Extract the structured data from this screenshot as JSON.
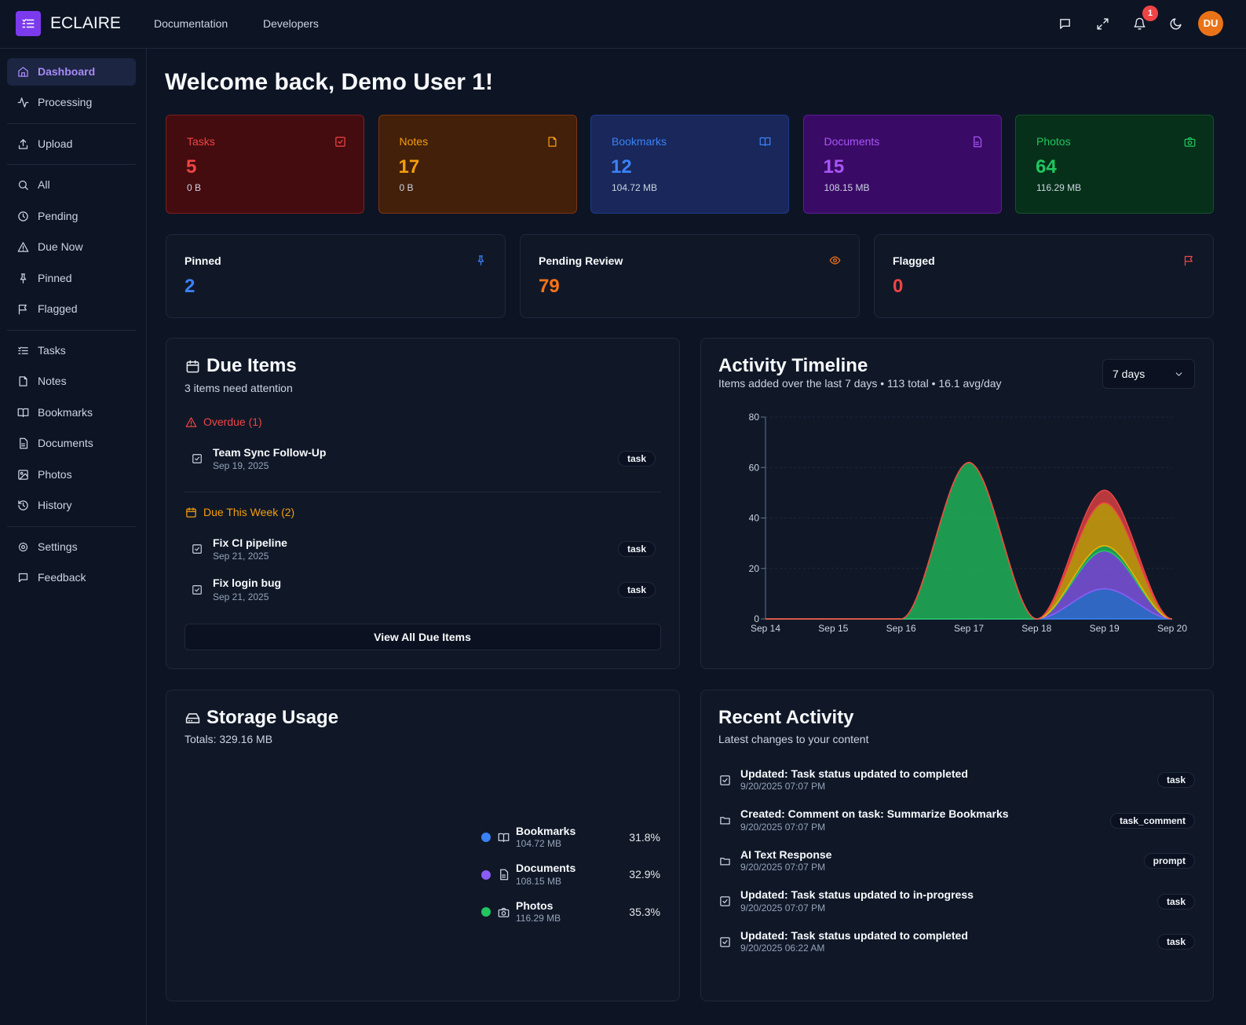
{
  "header": {
    "brand": "ECLAIRE",
    "nav": [
      "Documentation",
      "Developers"
    ],
    "notifications": 1,
    "avatar": "DU"
  },
  "sidebar": {
    "groups": [
      [
        "Dashboard",
        "Processing"
      ],
      [
        "Upload"
      ],
      [
        "All",
        "Pending",
        "Due Now",
        "Pinned",
        "Flagged"
      ],
      [
        "Tasks",
        "Notes",
        "Bookmarks",
        "Documents",
        "Photos",
        "History"
      ],
      [
        "Settings",
        "Feedback"
      ]
    ]
  },
  "page_title": "Welcome back, Demo User 1!",
  "stat_cards": [
    {
      "label": "Tasks",
      "count": 5,
      "size": "0 B",
      "color": "#ef4444",
      "bg": "#450c10",
      "border": "#7f1d1d"
    },
    {
      "label": "Notes",
      "count": 17,
      "size": "0 B",
      "color": "#f59e0b",
      "bg": "#43200a",
      "border": "#7c3410"
    },
    {
      "label": "Bookmarks",
      "count": 12,
      "size": "104.72 MB",
      "color": "#3b82f6",
      "bg": "#19275a",
      "border": "#1e3a8a"
    },
    {
      "label": "Documents",
      "count": 15,
      "size": "108.15 MB",
      "color": "#a855f7",
      "bg": "#3a0b66",
      "border": "#5b1c8f"
    },
    {
      "label": "Photos",
      "count": 64,
      "size": "116.29 MB",
      "color": "#22c55e",
      "bg": "#06301a",
      "border": "#14532d"
    }
  ],
  "counters": [
    {
      "label": "Pinned",
      "value": 2,
      "color": "#3b82f6"
    },
    {
      "label": "Pending Review",
      "value": 79,
      "color": "#f97316"
    },
    {
      "label": "Flagged",
      "value": 0,
      "color": "#ef4444"
    }
  ],
  "due_items": {
    "title": "Due Items",
    "subtitle": "3 items need attention",
    "groups": [
      {
        "title": "Overdue (1)",
        "color": "#ef4444",
        "items": [
          {
            "title": "Team Sync Follow-Up",
            "date": "Sep 19, 2025",
            "tag": "task"
          }
        ]
      },
      {
        "title": "Due This Week (2)",
        "color": "#f59e0b",
        "items": [
          {
            "title": "Fix CI pipeline",
            "date": "Sep 21, 2025",
            "tag": "task"
          },
          {
            "title": "Fix login bug",
            "date": "Sep 21, 2025",
            "tag": "task"
          }
        ]
      }
    ],
    "button": "View All Due Items"
  },
  "activity_timeline": {
    "title": "Activity Timeline",
    "subtitle": "Items added over the last 7 days • 113 total • 16.1 avg/day",
    "range": "7 days",
    "chart_data": {
      "type": "stacked-area",
      "categories": [
        "Sep 14",
        "Sep 15",
        "Sep 16",
        "Sep 17",
        "Sep 18",
        "Sep 19",
        "Sep 20"
      ],
      "ylim": [
        0,
        80
      ],
      "yticks": [
        0,
        20,
        40,
        60,
        80
      ],
      "grid": true,
      "series": [
        {
          "color": "#3b82f6",
          "values": [
            0,
            0,
            0,
            0,
            0,
            12,
            0
          ]
        },
        {
          "color": "#8b5cf6",
          "values": [
            0,
            0,
            0,
            0,
            0,
            15,
            0
          ]
        },
        {
          "color": "#22c55e",
          "values": [
            0,
            0,
            0,
            62,
            0,
            2,
            0
          ]
        },
        {
          "color": "#eab308",
          "values": [
            0,
            0,
            0,
            0,
            0,
            17,
            0
          ]
        },
        {
          "color": "#ef4444",
          "values": [
            0,
            0,
            0,
            0,
            0,
            5,
            0
          ]
        }
      ]
    }
  },
  "storage_usage": {
    "title": "Storage Usage",
    "subtitle": "Totals: 329.16 MB",
    "chart_data": {
      "type": "donut",
      "categories": [
        "Bookmarks",
        "Documents",
        "Photos"
      ],
      "sizes": [
        "104.72 MB",
        "108.15 MB",
        "116.29 MB"
      ],
      "values": [
        31.8,
        32.9,
        35.3
      ],
      "value_labels": [
        "31.8%",
        "32.9%",
        "35.3%"
      ],
      "colors": [
        "#3b82f6",
        "#8b5cf6",
        "#22c55e"
      ]
    }
  },
  "recent_activity": {
    "title": "Recent Activity",
    "subtitle": "Latest changes to your content",
    "items": [
      {
        "title": "Updated: Task status updated to completed",
        "time": "9/20/2025 07:07 PM",
        "tag": "task"
      },
      {
        "title": "Created: Comment on task: Summarize Bookmarks",
        "time": "9/20/2025 07:07 PM",
        "tag": "task_comment"
      },
      {
        "title": "AI Text Response",
        "time": "9/20/2025 07:07 PM",
        "tag": "prompt"
      },
      {
        "title": "Updated: Task status updated to in-progress",
        "time": "9/20/2025 07:07 PM",
        "tag": "task"
      },
      {
        "title": "Updated: Task status updated to completed",
        "time": "9/20/2025 06:22 AM",
        "tag": "task"
      }
    ]
  }
}
